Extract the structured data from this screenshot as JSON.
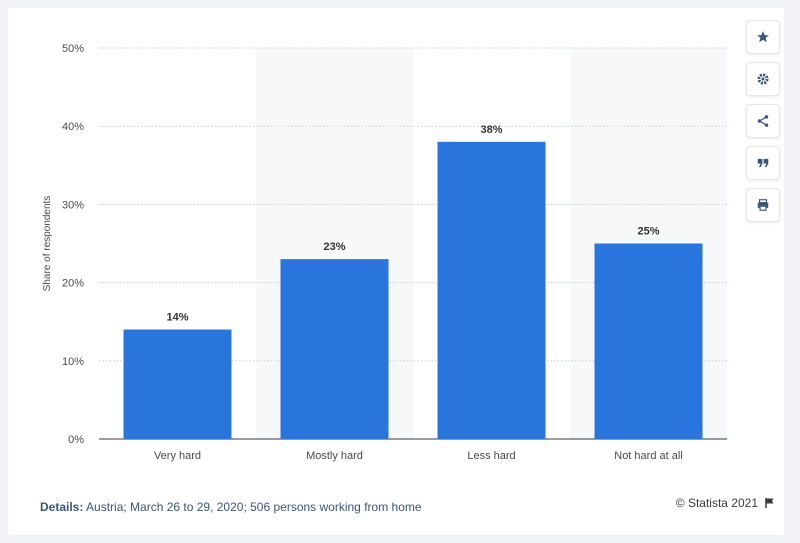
{
  "toolbar": {
    "icons": [
      "star-icon",
      "gear-icon",
      "share-icon",
      "quote-icon",
      "print-icon"
    ]
  },
  "footer": {
    "details_label": "Details:",
    "details_text": "Austria; March 26 to 29, 2020; 506 persons working from home",
    "credit": "© Statista 2021"
  },
  "colors": {
    "bar": "#2876dd",
    "grid": "#c9ced6",
    "band": "#f7f8fa",
    "text": "#4a4a4a"
  },
  "chart_data": {
    "type": "bar",
    "categories": [
      "Very hard",
      "Mostly hard",
      "Less hard",
      "Not hard at all"
    ],
    "values": [
      14,
      23,
      38,
      25
    ],
    "value_labels": [
      "14%",
      "23%",
      "38%",
      "25%"
    ],
    "ylabel": "Share of respondents",
    "ylim": [
      0,
      50
    ],
    "yticks": [
      0,
      10,
      20,
      30,
      40,
      50
    ],
    "ytick_labels": [
      "0%",
      "10%",
      "20%",
      "30%",
      "40%",
      "50%"
    ],
    "grid": true,
    "legend": "none"
  }
}
